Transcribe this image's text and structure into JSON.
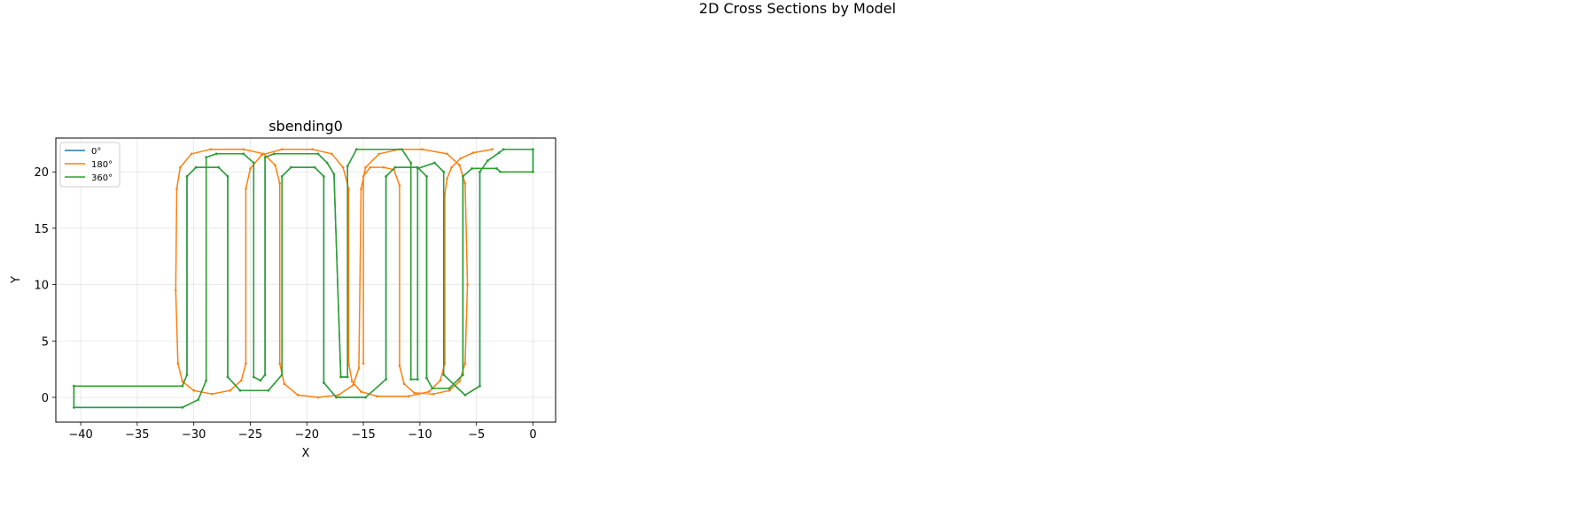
{
  "figure": {
    "suptitle": "2D Cross Sections by Model"
  },
  "chart_data": {
    "type": "line",
    "title": "sbending0",
    "xlabel": "X",
    "ylabel": "Y",
    "xlim": [
      -42.2,
      2.0
    ],
    "ylim": [
      -2.2,
      23.0
    ],
    "xticks": [
      -40,
      -35,
      -30,
      -25,
      -20,
      -15,
      -10,
      -5,
      0
    ],
    "xtick_labels": [
      "−40",
      "−35",
      "−30",
      "−25",
      "−20",
      "−15",
      "−10",
      "−5",
      "0"
    ],
    "yticks": [
      0,
      5,
      10,
      15,
      20
    ],
    "ytick_labels": [
      "0",
      "5",
      "10",
      "15",
      "20"
    ],
    "grid": true,
    "legend_position": "upper-left",
    "series": [
      {
        "name": "0°",
        "color": "#1f77b4",
        "points": [
          [
            0,
            20
          ],
          [
            -2.9,
            20
          ],
          [
            -3.2,
            20.3
          ],
          [
            -5.4,
            20.3
          ],
          [
            -6.2,
            19.6
          ],
          [
            -6.2,
            2
          ],
          [
            -7.4,
            0.8
          ],
          [
            -8.9,
            0.8
          ],
          [
            -9.4,
            1.7
          ],
          [
            -9.4,
            19.6
          ],
          [
            -10.2,
            20.4
          ],
          [
            -12.2,
            20.4
          ],
          [
            -13.0,
            19.6
          ],
          [
            -13.0,
            1.6
          ],
          [
            -14.8,
            0
          ],
          [
            -17.4,
            0
          ],
          [
            -18.5,
            1.3
          ],
          [
            -18.5,
            19.6
          ],
          [
            -19.3,
            20.4
          ],
          [
            -21.4,
            20.4
          ],
          [
            -22.2,
            19.6
          ],
          [
            -22.2,
            2
          ],
          [
            -23.4,
            0.6
          ],
          [
            -25.9,
            0.6
          ],
          [
            -27.0,
            1.8
          ],
          [
            -27.0,
            19.6
          ],
          [
            -27.8,
            20.4
          ],
          [
            -29.8,
            20.4
          ],
          [
            -30.6,
            19.6
          ],
          [
            -30.6,
            2
          ],
          [
            -31.0,
            1.0
          ],
          [
            -40.6,
            1.0
          ],
          [
            -40.6,
            -0.9
          ],
          [
            -31.0,
            -0.9
          ],
          [
            -29.6,
            -0.2
          ],
          [
            -28.9,
            1.5
          ],
          [
            -28.9,
            21.3
          ],
          [
            -28.0,
            21.6
          ],
          [
            -25.6,
            21.6
          ],
          [
            -24.7,
            20.8
          ],
          [
            -24.7,
            1.8
          ],
          [
            -24.1,
            1.5
          ],
          [
            -23.7,
            2
          ],
          [
            -23.7,
            21.3
          ],
          [
            -22.9,
            21.6
          ],
          [
            -19.0,
            21.6
          ],
          [
            -18.2,
            20.8
          ],
          [
            -17.6,
            19.8
          ],
          [
            -17.0,
            1.8
          ],
          [
            -16.4,
            1.8
          ],
          [
            -16.4,
            20.5
          ],
          [
            -15.6,
            22.0
          ],
          [
            -11.6,
            22.0
          ],
          [
            -10.8,
            20.8
          ],
          [
            -10.8,
            1.6
          ],
          [
            -10.2,
            1.6
          ],
          [
            -10.2,
            20.3
          ],
          [
            -8.7,
            20.8
          ],
          [
            -7.9,
            20.0
          ],
          [
            -7.9,
            2
          ],
          [
            -6.0,
            0.2
          ],
          [
            -4.7,
            1.0
          ],
          [
            -4.7,
            20.0
          ],
          [
            -4.0,
            21.0
          ],
          [
            -3.0,
            21.7
          ],
          [
            -2.6,
            22.0
          ],
          [
            0,
            22.0
          ],
          [
            0,
            20
          ]
        ]
      },
      {
        "name": "180°",
        "color": "#ff7f0e",
        "points": [
          [
            -3.6,
            22.0
          ],
          [
            -5.3,
            21.7
          ],
          [
            -6.4,
            21.2
          ],
          [
            -7.2,
            20.4
          ],
          [
            -7.6,
            19.4
          ],
          [
            -7.8,
            18.0
          ],
          [
            -7.8,
            3.0
          ],
          [
            -8.2,
            1.5
          ],
          [
            -9.2,
            0.5
          ],
          [
            -11.0,
            0.1
          ],
          [
            -13.8,
            0.1
          ],
          [
            -15.2,
            0.5
          ],
          [
            -16.0,
            1.4
          ],
          [
            -16.3,
            3.0
          ],
          [
            -16.3,
            18.5
          ],
          [
            -16.8,
            20.4
          ],
          [
            -17.8,
            21.6
          ],
          [
            -19.5,
            22.0
          ],
          [
            -22.2,
            22.0
          ],
          [
            -24.0,
            21.5
          ],
          [
            -25.0,
            20.3
          ],
          [
            -25.4,
            18.5
          ],
          [
            -25.4,
            3.0
          ],
          [
            -25.8,
            1.5
          ],
          [
            -26.8,
            0.6
          ],
          [
            -28.4,
            0.3
          ],
          [
            -30.0,
            0.6
          ],
          [
            -31.0,
            1.4
          ],
          [
            -31.4,
            3.0
          ],
          [
            -31.6,
            9.5
          ],
          [
            -31.5,
            18.5
          ],
          [
            -31.2,
            20.4
          ],
          [
            -30.2,
            21.6
          ],
          [
            -28.5,
            22.0
          ],
          [
            -25.6,
            22.0
          ],
          [
            -23.8,
            21.6
          ],
          [
            -22.8,
            20.6
          ],
          [
            -22.4,
            19.0
          ],
          [
            -22.4,
            3.0
          ],
          [
            -22.0,
            1.2
          ],
          [
            -20.8,
            0.2
          ],
          [
            -19.0,
            0.0
          ],
          [
            -17.2,
            0.2
          ],
          [
            -15.9,
            1.1
          ],
          [
            -15.4,
            2.6
          ],
          [
            -15.2,
            18.5
          ],
          [
            -14.8,
            20.4
          ],
          [
            -13.6,
            21.6
          ],
          [
            -11.8,
            22.0
          ],
          [
            -9.8,
            22.0
          ],
          [
            -7.6,
            21.6
          ],
          [
            -6.5,
            20.6
          ],
          [
            -6.0,
            19.0
          ],
          [
            -5.8,
            10.0
          ],
          [
            -6.0,
            3.0
          ],
          [
            -6.5,
            1.4
          ],
          [
            -7.4,
            0.6
          ],
          [
            -8.8,
            0.3
          ],
          [
            -10.5,
            0.4
          ],
          [
            -11.4,
            1.2
          ],
          [
            -11.8,
            2.8
          ],
          [
            -11.8,
            18.8
          ],
          [
            -12.3,
            20.2
          ],
          [
            -13.2,
            20.4
          ],
          [
            -14.4,
            20.4
          ],
          [
            -15.0,
            19.6
          ],
          [
            -15.0,
            3.0
          ]
        ]
      },
      {
        "name": "360°",
        "color": "#2ca02c",
        "points": [
          [
            0,
            20
          ],
          [
            -2.9,
            20
          ],
          [
            -3.2,
            20.3
          ],
          [
            -5.4,
            20.3
          ],
          [
            -6.2,
            19.6
          ],
          [
            -6.2,
            2
          ],
          [
            -7.4,
            0.8
          ],
          [
            -8.9,
            0.8
          ],
          [
            -9.4,
            1.7
          ],
          [
            -9.4,
            19.6
          ],
          [
            -10.2,
            20.4
          ],
          [
            -12.2,
            20.4
          ],
          [
            -13.0,
            19.6
          ],
          [
            -13.0,
            1.6
          ],
          [
            -14.8,
            0
          ],
          [
            -17.4,
            0
          ],
          [
            -18.5,
            1.3
          ],
          [
            -18.5,
            19.6
          ],
          [
            -19.3,
            20.4
          ],
          [
            -21.4,
            20.4
          ],
          [
            -22.2,
            19.6
          ],
          [
            -22.2,
            2
          ],
          [
            -23.4,
            0.6
          ],
          [
            -25.9,
            0.6
          ],
          [
            -27.0,
            1.8
          ],
          [
            -27.0,
            19.6
          ],
          [
            -27.8,
            20.4
          ],
          [
            -29.8,
            20.4
          ],
          [
            -30.6,
            19.6
          ],
          [
            -30.6,
            2
          ],
          [
            -31.0,
            1.0
          ],
          [
            -40.6,
            1.0
          ],
          [
            -40.6,
            -0.9
          ],
          [
            -31.0,
            -0.9
          ],
          [
            -29.6,
            -0.2
          ],
          [
            -28.9,
            1.5
          ],
          [
            -28.9,
            21.3
          ],
          [
            -28.0,
            21.6
          ],
          [
            -25.6,
            21.6
          ],
          [
            -24.7,
            20.8
          ],
          [
            -24.7,
            1.8
          ],
          [
            -24.1,
            1.5
          ],
          [
            -23.7,
            2
          ],
          [
            -23.7,
            21.3
          ],
          [
            -22.9,
            21.6
          ],
          [
            -19.0,
            21.6
          ],
          [
            -18.2,
            20.8
          ],
          [
            -17.6,
            19.8
          ],
          [
            -17.0,
            1.8
          ],
          [
            -16.4,
            1.8
          ],
          [
            -16.4,
            20.5
          ],
          [
            -15.6,
            22.0
          ],
          [
            -11.6,
            22.0
          ],
          [
            -10.8,
            20.8
          ],
          [
            -10.8,
            1.6
          ],
          [
            -10.2,
            1.6
          ],
          [
            -10.2,
            20.3
          ],
          [
            -8.7,
            20.8
          ],
          [
            -7.9,
            20.0
          ],
          [
            -7.9,
            2
          ],
          [
            -6.0,
            0.2
          ],
          [
            -4.7,
            1.0
          ],
          [
            -4.7,
            20.0
          ],
          [
            -4.0,
            21.0
          ],
          [
            -3.0,
            21.7
          ],
          [
            -2.6,
            22.0
          ],
          [
            0,
            22.0
          ],
          [
            0,
            20
          ]
        ]
      }
    ]
  }
}
